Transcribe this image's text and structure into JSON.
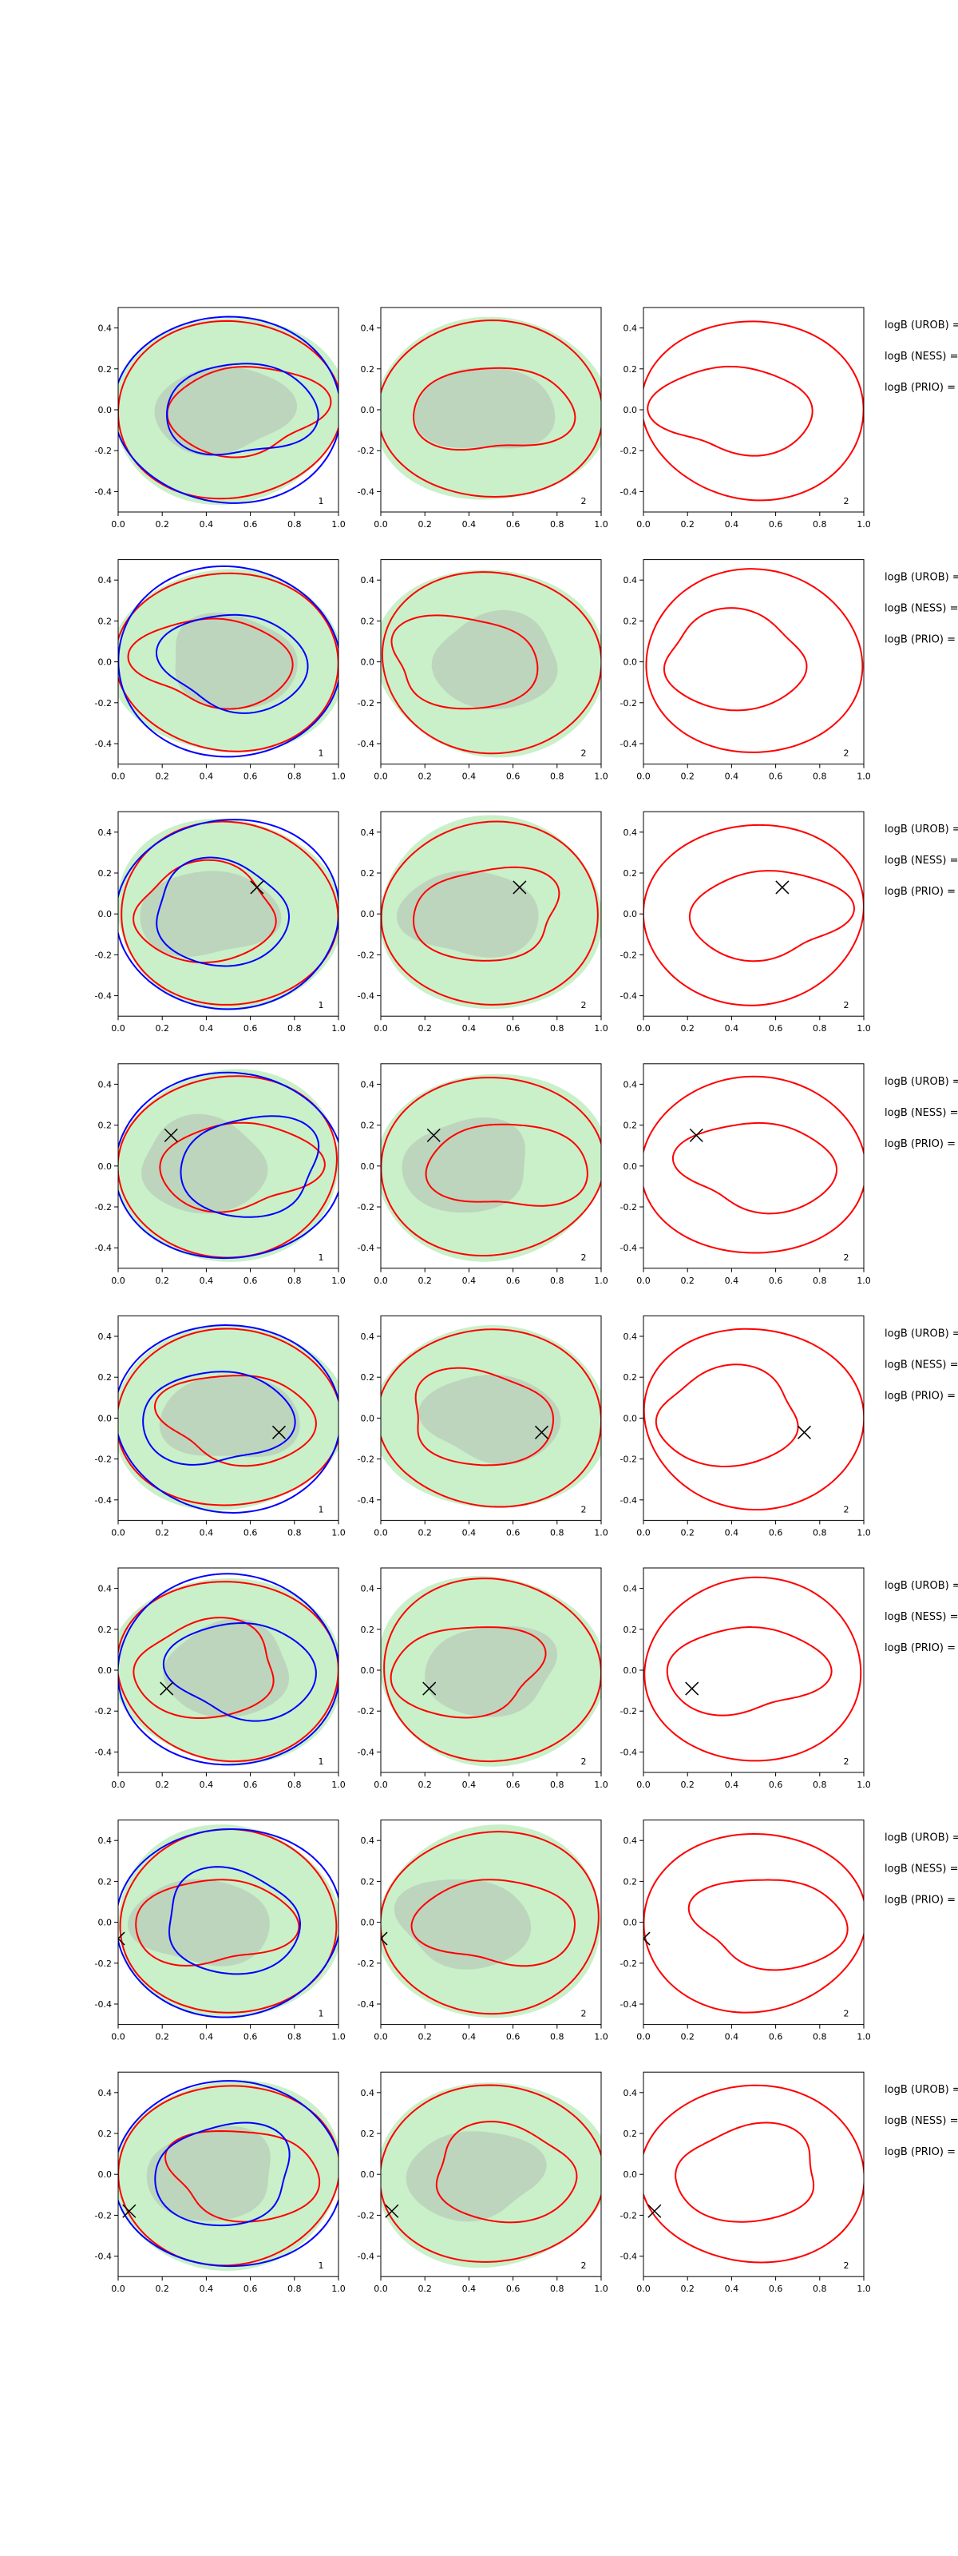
{
  "figure": {
    "rows": 8,
    "panels_per_row": 3,
    "xlim": [
      0,
      1
    ],
    "ylim": [
      -0.5,
      0.5
    ],
    "xticks": [
      "0.0",
      "0.2",
      "0.4",
      "0.6",
      "0.8",
      "1.0"
    ],
    "yticks": [
      "-0.4",
      "-0.2",
      "0.0",
      "0.2",
      "0.4"
    ],
    "panel_labels": [
      "1",
      "2",
      "2"
    ],
    "logB_labels": [
      "logB (UROB) =",
      "logB (NESS) =",
      "logB (PRIO) ="
    ],
    "colors": {
      "posterior_fill_outer": "#c9f0c9",
      "posterior_fill_inner": "#b8ccb8",
      "contour_red": "#ff0000",
      "contour_blue": "#0000ff",
      "marker": "#000000"
    }
  },
  "chart_data": {
    "type": "contour",
    "xlim": [
      0,
      1
    ],
    "ylim": [
      -0.5,
      0.5
    ],
    "grid": false,
    "rows": [
      {
        "marker": null
      },
      {
        "marker": null
      },
      {
        "marker": [
          0.63,
          0.13
        ]
      },
      {
        "marker": [
          0.24,
          0.15
        ]
      },
      {
        "marker": [
          0.73,
          -0.07
        ]
      },
      {
        "marker": [
          0.22,
          -0.09
        ]
      },
      {
        "marker": [
          0.0,
          -0.08
        ]
      },
      {
        "marker": [
          0.05,
          -0.18
        ]
      }
    ]
  }
}
